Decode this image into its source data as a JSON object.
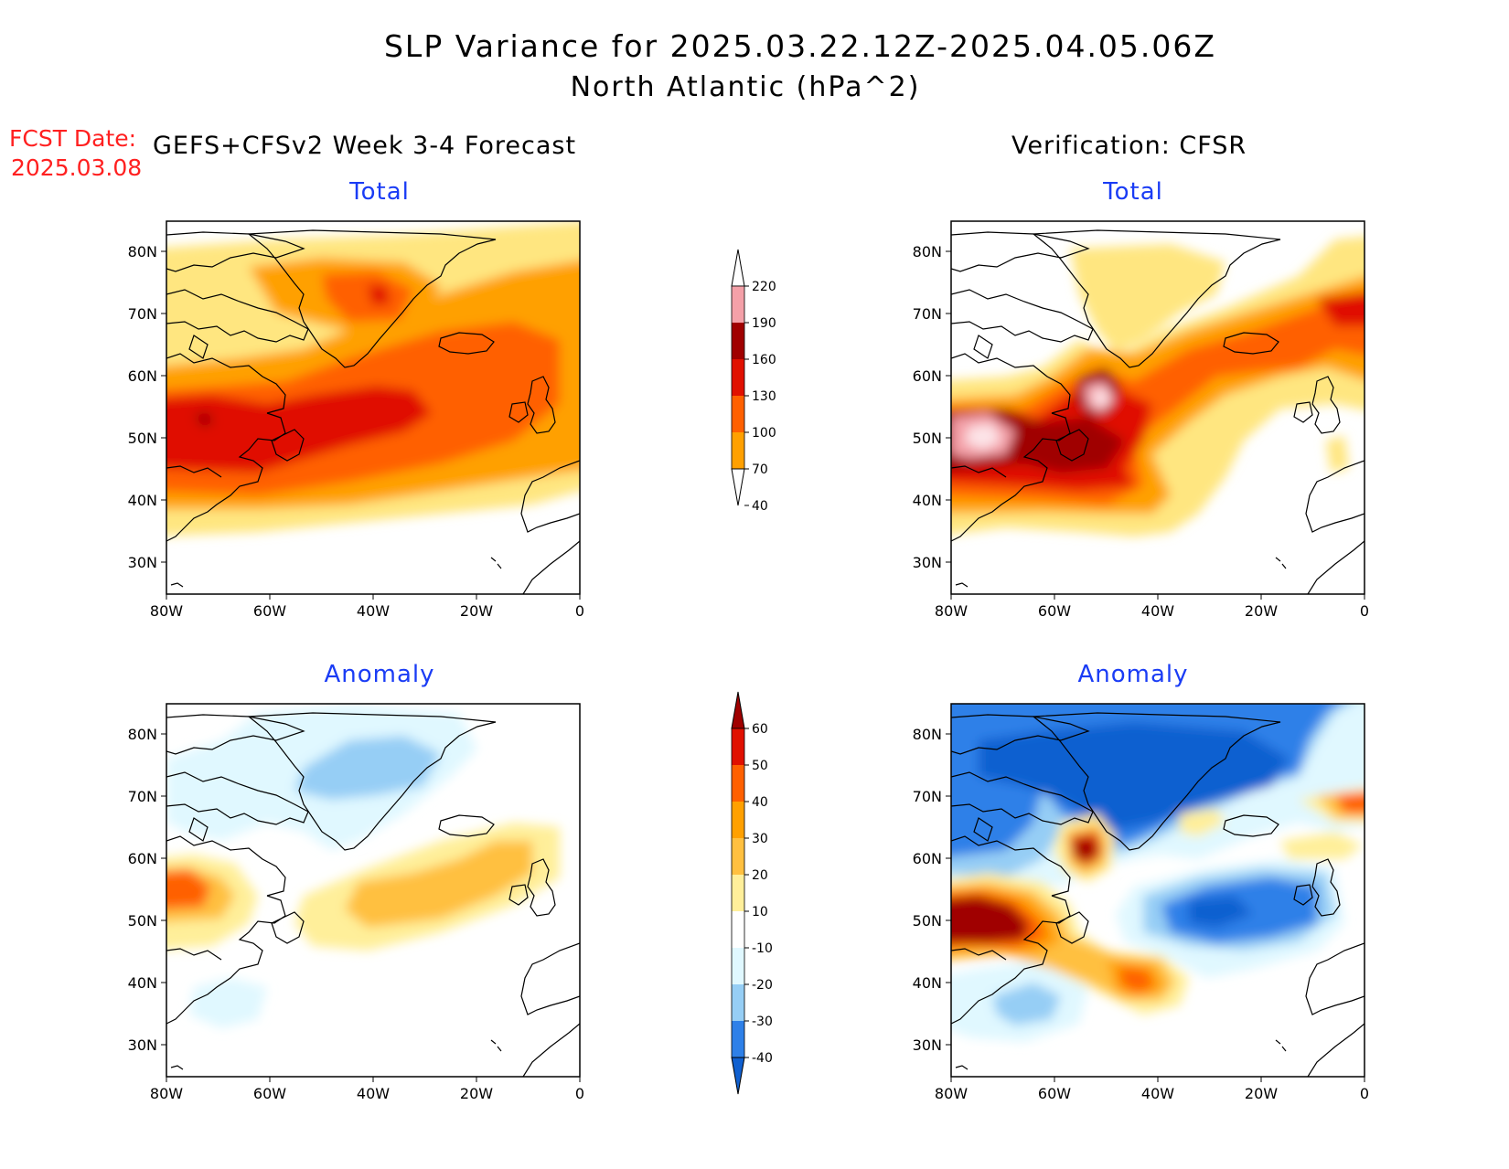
{
  "header": {
    "title_line1": "SLP Variance for 2025.03.22.12Z-2025.04.05.06Z",
    "title_line2": "North Atlantic (hPa^2)",
    "fcst_label": "FCST Date:",
    "fcst_date": "2025.03.08",
    "left_heading": "GEFS+CFSv2 Week 3-4 Forecast",
    "right_heading": "Verification: CFSR"
  },
  "panels": {
    "fcst_total": {
      "title": "Total"
    },
    "verif_total": {
      "title": "Total"
    },
    "fcst_anomaly": {
      "title": "Anomaly"
    },
    "verif_anomaly": {
      "title": "Anomaly"
    }
  },
  "axes": {
    "lon_labels": [
      "80W",
      "60W",
      "40W",
      "20W",
      "0"
    ],
    "lat_labels": [
      "80N",
      "70N",
      "60N",
      "50N",
      "40N",
      "30N"
    ]
  },
  "colorbars": {
    "total": {
      "levels": [
        "40",
        "70",
        "100",
        "130",
        "160",
        "190",
        "220"
      ],
      "colors": [
        "#ffe680",
        "#ffa000",
        "#ff6000",
        "#e01000",
        "#a00000",
        "#f4a0a8",
        "#fde4e8"
      ]
    },
    "anomaly": {
      "levels": [
        "-40",
        "-30",
        "-20",
        "-10",
        "10",
        "20",
        "30",
        "40",
        "50",
        "60"
      ],
      "colors": [
        "#1060d0",
        "#2e80e8",
        "#96cef5",
        "#e0f8ff",
        "#ffffff",
        "#ffef9a",
        "#ffc040",
        "#ffa000",
        "#ff6000",
        "#e01000",
        "#a00000"
      ]
    }
  },
  "colors": {
    "title_blue": "#1a3cf5",
    "fcst_red": "#ff2020"
  }
}
